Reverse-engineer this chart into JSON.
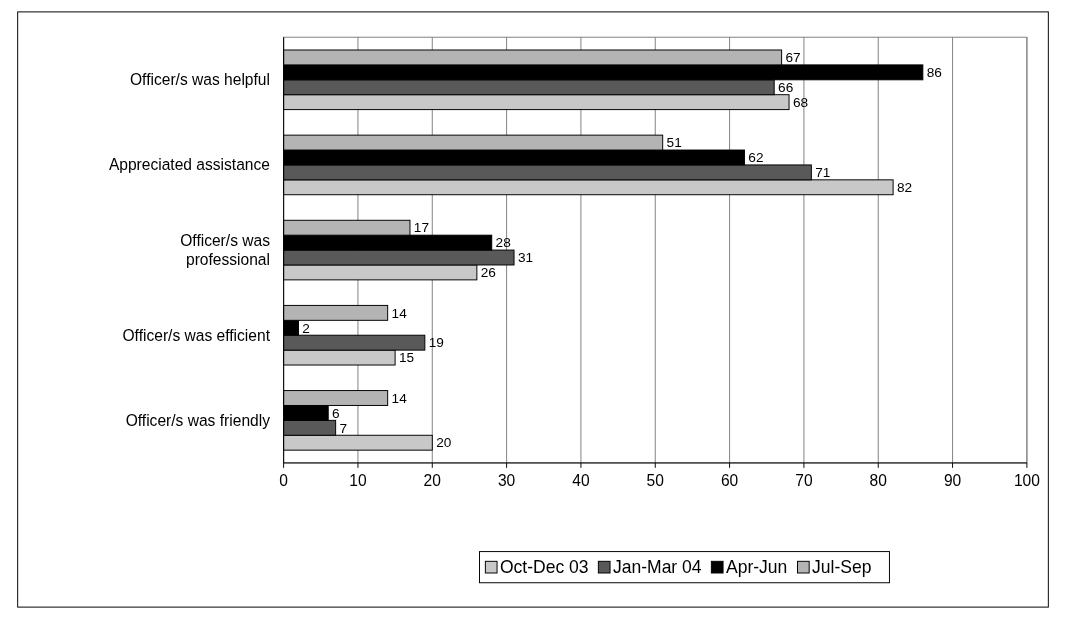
{
  "chart_data": {
    "type": "bar",
    "orientation": "horizontal",
    "categories": [
      "Officer/s was helpful",
      "Appreciated assistance",
      "Officer/s was professional",
      "Officer/s was efficient",
      "Officer/s was friendly"
    ],
    "series": [
      {
        "name": "Oct-Dec 03",
        "color": "#c8c8c8",
        "values": [
          68,
          82,
          26,
          15,
          20
        ]
      },
      {
        "name": "Jan-Mar 04",
        "color": "#595959",
        "values": [
          66,
          71,
          31,
          19,
          7
        ]
      },
      {
        "name": "Apr-Jun",
        "color": "#000000",
        "values": [
          86,
          62,
          28,
          2,
          6
        ]
      },
      {
        "name": "Jul-Sep",
        "color": "#b4b4b4",
        "values": [
          67,
          51,
          17,
          14,
          14
        ]
      }
    ],
    "xlim": [
      0,
      100
    ],
    "xticks": [
      0,
      10,
      20,
      30,
      40,
      50,
      60,
      70,
      80,
      90,
      100
    ],
    "grid": "x",
    "data_labels": true,
    "legend": "bottom"
  }
}
